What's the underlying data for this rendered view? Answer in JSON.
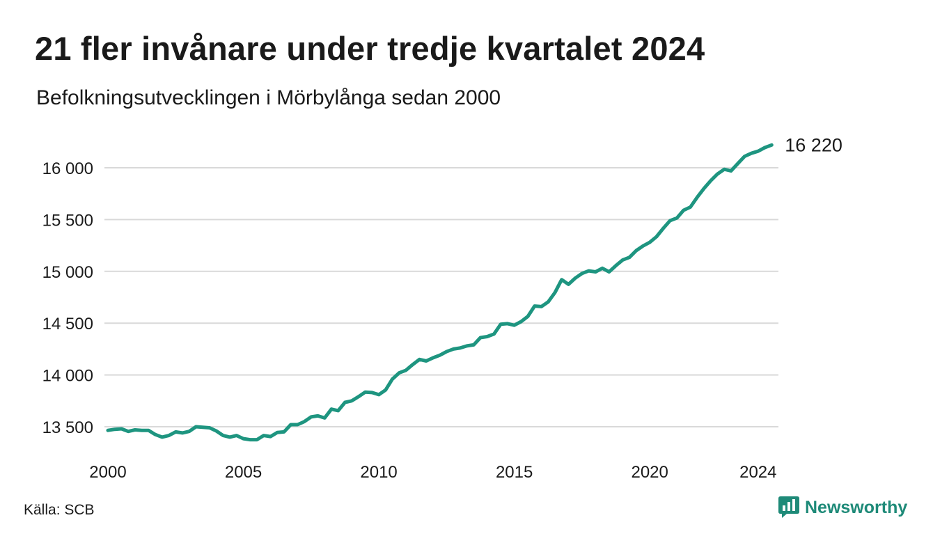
{
  "header": {
    "title": "21 fler invånare under tredje kvartalet 2024",
    "subtitle": "Befolkningsutvecklingen i Mörbylånga sedan 2000"
  },
  "footer": {
    "source": "Källa: SCB",
    "brand": "Newsworthy",
    "brand_icon": "newsworthy-logo-icon"
  },
  "colors": {
    "line": "#1e9580",
    "grid": "#d9d9d9",
    "text": "#1a1a1a",
    "brand": "#1e8a78"
  },
  "chart_data": {
    "type": "line",
    "title": "21 fler invånare under tredje kvartalet 2024",
    "subtitle": "Befolkningsutvecklingen i Mörbylånga sedan 2000",
    "xlabel": "",
    "ylabel": "",
    "xlim": [
      2000,
      2024.75
    ],
    "ylim": [
      13300,
      16250
    ],
    "grid": "horizontal",
    "y_ticks": [
      13500,
      14000,
      14500,
      15000,
      15500,
      16000
    ],
    "y_tick_labels": [
      "13 500",
      "14 000",
      "14 500",
      "15 000",
      "15 500",
      "16 000"
    ],
    "x_ticks": [
      2000,
      2005,
      2010,
      2015,
      2020,
      2024
    ],
    "x_tick_labels": [
      "2000",
      "2005",
      "2010",
      "2015",
      "2020",
      "2024"
    ],
    "end_label": "16 220",
    "series": [
      {
        "x_start": 2000.0,
        "x_step": 0.25,
        "values": [
          13465,
          13475,
          13480,
          13455,
          13470,
          13465,
          13465,
          13425,
          13400,
          13415,
          13450,
          13440,
          13455,
          13500,
          13495,
          13490,
          13460,
          13415,
          13400,
          13415,
          13385,
          13375,
          13375,
          13415,
          13405,
          13445,
          13450,
          13520,
          13520,
          13550,
          13595,
          13605,
          13585,
          13670,
          13655,
          13735,
          13750,
          13790,
          13835,
          13830,
          13810,
          13855,
          13960,
          14020,
          14045,
          14100,
          14150,
          14135,
          14165,
          14190,
          14225,
          14250,
          14260,
          14280,
          14290,
          14360,
          14370,
          14395,
          14490,
          14495,
          14480,
          14515,
          14565,
          14665,
          14660,
          14705,
          14795,
          14920,
          14875,
          14935,
          14980,
          15005,
          14995,
          15030,
          14995,
          15055,
          15110,
          15135,
          15200,
          15245,
          15280,
          15335,
          15415,
          15490,
          15515,
          15590,
          15620,
          15715,
          15800,
          15875,
          15940,
          15985,
          15970,
          16040,
          16110,
          16140,
          16160,
          16195,
          16220
        ]
      }
    ]
  }
}
